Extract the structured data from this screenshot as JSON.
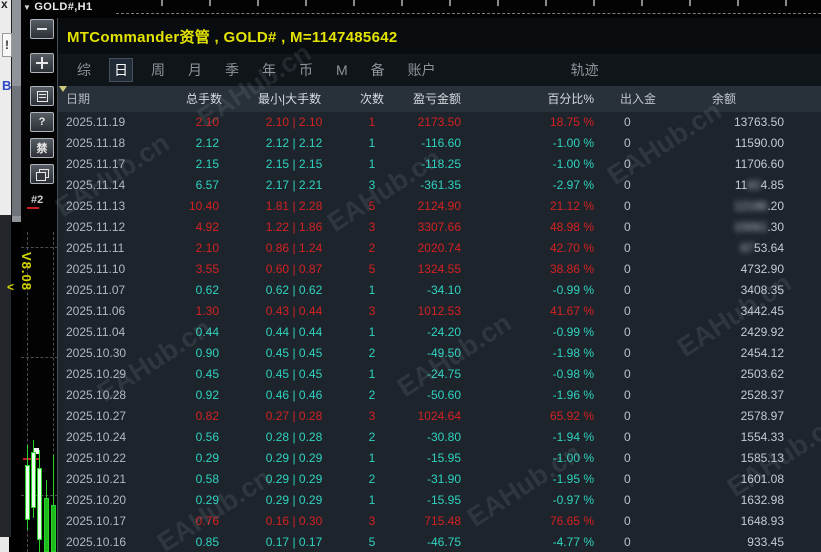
{
  "window": {
    "chart_symbol": "GOLD#,H1"
  },
  "left_edge": {
    "items": [
      "x",
      "!",
      "B"
    ]
  },
  "chart": {
    "toolbar": [
      {
        "name": "minimize",
        "glyph": ""
      },
      {
        "name": "move",
        "glyph": ""
      },
      {
        "name": "list",
        "glyph": ""
      },
      {
        "name": "help",
        "glyph": "?"
      },
      {
        "name": "disable",
        "glyph": "禁"
      },
      {
        "name": "windows",
        "glyph": ""
      }
    ],
    "order_label": "#2",
    "version_label": "V8.08"
  },
  "panel": {
    "title": "MTCommander资管 , GOLD# , M=1147485642",
    "tabs": [
      {
        "label": "综",
        "selected": false
      },
      {
        "label": "日",
        "selected": true
      },
      {
        "label": "周",
        "selected": false
      },
      {
        "label": "月",
        "selected": false
      },
      {
        "label": "季",
        "selected": false
      },
      {
        "label": "年",
        "selected": false
      },
      {
        "label": "币",
        "selected": false
      },
      {
        "label": "M",
        "selected": false
      },
      {
        "label": "备",
        "selected": false
      },
      {
        "label": "账户",
        "selected": false
      },
      {
        "label": "轨迹",
        "selected": false
      }
    ],
    "table": {
      "columns": [
        "日期",
        "总手数",
        "最小|大手数",
        "次数",
        "盈亏金额",
        "百分比%",
        "出入金",
        "余额"
      ],
      "rows": [
        {
          "date": "2025.11.19",
          "lots": "2.10",
          "minmax": "2.10 | 2.10",
          "count": "1",
          "profit": "2173.50",
          "pct": "18.75 %",
          "inout": "0",
          "balance": "13763.50"
        },
        {
          "date": "2025.11.18",
          "lots": "2.12",
          "minmax": "2.12 | 2.12",
          "count": "1",
          "profit": "-116.60",
          "pct": "-1.00 %",
          "inout": "0",
          "balance": "11590.00"
        },
        {
          "date": "2025.11.17",
          "lots": "2.15",
          "minmax": "2.15 | 2.15",
          "count": "1",
          "profit": "-118.25",
          "pct": "-1.00 %",
          "inout": "0",
          "balance": "11706.60"
        },
        {
          "date": "2025.11.14",
          "lots": "6.57",
          "minmax": "2.17 | 2.21",
          "count": "3",
          "profit": "-361.35",
          "pct": "-2.97 %",
          "inout": "0",
          "balance": "11824.85",
          "blur": [
            2,
            2
          ]
        },
        {
          "date": "2025.11.13",
          "lots": "10.40",
          "minmax": "1.81 | 2.28",
          "count": "5",
          "profit": "2124.90",
          "pct": "21.12 %",
          "inout": "0",
          "balance": "12186.20",
          "blur": [
            0,
            5
          ]
        },
        {
          "date": "2025.11.12",
          "lots": "4.92",
          "minmax": "1.22 | 1.86",
          "count": "3",
          "profit": "3307.66",
          "pct": "48.98 %",
          "inout": "0",
          "balance": "10061.30",
          "blur": [
            0,
            5
          ]
        },
        {
          "date": "2025.11.11",
          "lots": "2.10",
          "minmax": "0.86 | 1.24",
          "count": "2",
          "profit": "2020.74",
          "pct": "42.70 %",
          "inout": "0",
          "balance": "6753.64",
          "blur": [
            0,
            2
          ]
        },
        {
          "date": "2025.11.10",
          "lots": "3.55",
          "minmax": "0.60 | 0.87",
          "count": "5",
          "profit": "1324.55",
          "pct": "38.86 %",
          "inout": "0",
          "balance": "4732.90"
        },
        {
          "date": "2025.11.07",
          "lots": "0.62",
          "minmax": "0.62 | 0.62",
          "count": "1",
          "profit": "-34.10",
          "pct": "-0.99 %",
          "inout": "0",
          "balance": "3408.35"
        },
        {
          "date": "2025.11.06",
          "lots": "1.30",
          "minmax": "0.43 | 0.44",
          "count": "3",
          "profit": "1012.53",
          "pct": "41.67 %",
          "inout": "0",
          "balance": "3442.45"
        },
        {
          "date": "2025.11.04",
          "lots": "0.44",
          "minmax": "0.44 | 0.44",
          "count": "1",
          "profit": "-24.20",
          "pct": "-0.99 %",
          "inout": "0",
          "balance": "2429.92"
        },
        {
          "date": "2025.10.30",
          "lots": "0.90",
          "minmax": "0.45 | 0.45",
          "count": "2",
          "profit": "-49.50",
          "pct": "-1.98 %",
          "inout": "0",
          "balance": "2454.12"
        },
        {
          "date": "2025.10.29",
          "lots": "0.45",
          "minmax": "0.45 | 0.45",
          "count": "1",
          "profit": "-24.75",
          "pct": "-0.98 %",
          "inout": "0",
          "balance": "2503.62"
        },
        {
          "date": "2025.10.28",
          "lots": "0.92",
          "minmax": "0.46 | 0.46",
          "count": "2",
          "profit": "-50.60",
          "pct": "-1.96 %",
          "inout": "0",
          "balance": "2528.37"
        },
        {
          "date": "2025.10.27",
          "lots": "0.82",
          "minmax": "0.27 | 0.28",
          "count": "3",
          "profit": "1024.64",
          "pct": "65.92 %",
          "inout": "0",
          "balance": "2578.97"
        },
        {
          "date": "2025.10.24",
          "lots": "0.56",
          "minmax": "0.28 | 0.28",
          "count": "2",
          "profit": "-30.80",
          "pct": "-1.94 %",
          "inout": "0",
          "balance": "1554.33"
        },
        {
          "date": "2025.10.22",
          "lots": "0.29",
          "minmax": "0.29 | 0.29",
          "count": "1",
          "profit": "-15.95",
          "pct": "-1.00 %",
          "inout": "0",
          "balance": "1585.13"
        },
        {
          "date": "2025.10.21",
          "lots": "0.58",
          "minmax": "0.29 | 0.29",
          "count": "2",
          "profit": "-31.90",
          "pct": "-1.95 %",
          "inout": "0",
          "balance": "1601.08"
        },
        {
          "date": "2025.10.20",
          "lots": "0.29",
          "minmax": "0.29 | 0.29",
          "count": "1",
          "profit": "-15.95",
          "pct": "-0.97 %",
          "inout": "0",
          "balance": "1632.98"
        },
        {
          "date": "2025.10.17",
          "lots": "0.76",
          "minmax": "0.16 | 0.30",
          "count": "3",
          "profit": "715.48",
          "pct": "76.65 %",
          "inout": "0",
          "balance": "1648.93"
        },
        {
          "date": "2025.10.16",
          "lots": "0.85",
          "minmax": "0.17 | 0.17",
          "count": "5",
          "profit": "-46.75",
          "pct": "-4.77 %",
          "inout": "0",
          "balance": "933.45"
        }
      ]
    }
  },
  "watermark": {
    "text": "EAHub.cn"
  },
  "colors": {
    "gain": "#d42222",
    "loss": "#2fd3bf",
    "title": "#e4e400",
    "panel_bg": "#1d242c"
  }
}
